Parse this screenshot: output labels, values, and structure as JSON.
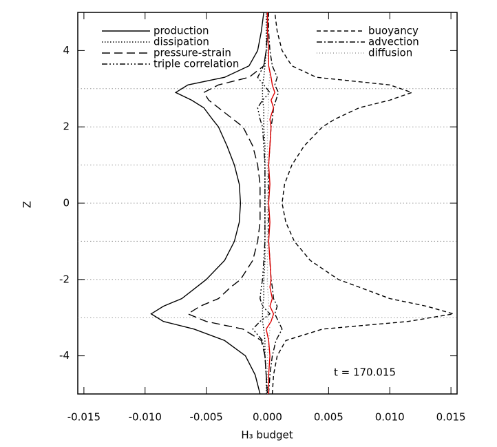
{
  "chart_data": {
    "type": "line",
    "xlabel": "H₃ budget",
    "ylabel": "Z",
    "annotation": "t = 170.015",
    "xlim": [
      -0.0155,
      0.0155
    ],
    "ylim": [
      -5,
      5
    ],
    "xticks": [
      {
        "value": -0.015,
        "label": "-0.015"
      },
      {
        "value": -0.01,
        "label": "-0.010"
      },
      {
        "value": -0.005,
        "label": "-0.005"
      },
      {
        "value": 0,
        "label": "0.000"
      },
      {
        "value": 0.005,
        "label": "0.005"
      },
      {
        "value": 0.01,
        "label": "0.010"
      },
      {
        "value": 0.015,
        "label": "0.015"
      }
    ],
    "yticks": [
      -4,
      -2,
      0,
      2,
      4
    ],
    "hlines": [
      -3,
      -2,
      -1,
      0,
      1,
      2,
      3
    ],
    "z": [
      -5,
      -4.5,
      -4,
      -3.6,
      -3.3,
      -3.1,
      -2.9,
      -2.7,
      -2.5,
      -2.2,
      -2,
      -1.5,
      -1,
      -0.5,
      0,
      0.5,
      1,
      1.5,
      2,
      2.2,
      2.5,
      2.7,
      2.9,
      3.1,
      3.3,
      3.6,
      4,
      4.5,
      5
    ],
    "series": [
      {
        "name": "production",
        "color": "#000000",
        "style": "solid",
        "values": [
          -0.0006,
          -0.001,
          -0.0018,
          -0.0035,
          -0.006,
          -0.0085,
          -0.0095,
          -0.0085,
          -0.007,
          -0.0058,
          -0.005,
          -0.0035,
          -0.0027,
          -0.0023,
          -0.0022,
          -0.0023,
          -0.0027,
          -0.0033,
          -0.004,
          -0.0045,
          -0.0052,
          -0.0062,
          -0.0075,
          -0.0065,
          -0.0035,
          -0.0015,
          -0.0008,
          -0.0005,
          -0.0003
        ]
      },
      {
        "name": "dissipation",
        "color": "#000000",
        "style": "dotted",
        "values": [
          -0.0001,
          -0.0001,
          -0.0002,
          -0.0002,
          -0.0003,
          -0.0004,
          -0.0004,
          -0.0004,
          -0.0003,
          -0.0003,
          -0.0003,
          -0.0002,
          -0.0002,
          -0.0002,
          -0.0002,
          -0.0002,
          -0.0002,
          -0.0002,
          -0.0003,
          -0.0003,
          -0.0003,
          -0.0004,
          -0.0004,
          -0.0004,
          -0.0003,
          -0.0002,
          -0.0001,
          -0.0001,
          -0.0001
        ]
      },
      {
        "name": "pressure-strain",
        "color": "#000000",
        "style": "longdash",
        "values": [
          0,
          -0.0001,
          -0.0002,
          -0.0005,
          -0.002,
          -0.005,
          -0.0065,
          -0.0055,
          -0.004,
          -0.003,
          -0.0022,
          -0.0012,
          -0.0008,
          -0.0006,
          -0.0006,
          -0.0006,
          -0.0008,
          -0.0012,
          -0.002,
          -0.0028,
          -0.004,
          -0.0048,
          -0.0052,
          -0.004,
          -0.0015,
          -0.0003,
          -0.0001,
          0,
          0
        ]
      },
      {
        "name": "triple correlation",
        "color": "#000000",
        "style": "dashdotdot",
        "values": [
          0,
          -0.0001,
          -0.0002,
          -0.0004,
          -0.0012,
          -0.0006,
          0.0002,
          -0.0004,
          -0.0006,
          -0.0005,
          -0.0004,
          -0.0003,
          -0.0002,
          -0.0002,
          -0.0002,
          -0.0002,
          -0.0002,
          -0.0003,
          -0.0004,
          -0.0006,
          -0.0008,
          -0.0004,
          0.0002,
          -0.0003,
          -0.0008,
          -0.0003,
          -0.0001,
          0,
          0
        ]
      },
      {
        "name": "buoyancy",
        "color": "#000000",
        "style": "dash",
        "values": [
          0.0004,
          0.0005,
          0.0008,
          0.0015,
          0.0045,
          0.0115,
          0.0152,
          0.013,
          0.01,
          0.0075,
          0.0058,
          0.0035,
          0.0022,
          0.0015,
          0.0012,
          0.0014,
          0.002,
          0.003,
          0.0045,
          0.0055,
          0.0075,
          0.01,
          0.0118,
          0.01,
          0.004,
          0.002,
          0.0012,
          0.0008,
          0.0006
        ]
      },
      {
        "name": "advection",
        "color": "#000000",
        "style": "dashdot",
        "values": [
          0.0001,
          0.0002,
          0.0004,
          0.0007,
          0.0012,
          0.0009,
          0.0006,
          0.0008,
          0.0005,
          0.0004,
          0.0003,
          0.0002,
          0.0001,
          0.0001,
          0.0001,
          0.0001,
          0.0001,
          0.0002,
          0.0003,
          0.0004,
          0.0005,
          0.0007,
          0.0009,
          0.0006,
          0.0008,
          0.0004,
          0.0002,
          0.0001,
          0.0001
        ]
      },
      {
        "name": "diffusion",
        "color": "#999999",
        "style": "fine",
        "values": [
          0,
          0,
          0,
          0.0001,
          0.0002,
          0.0001,
          0,
          0.0001,
          0.0001,
          0,
          0,
          0,
          0,
          0,
          0,
          0,
          0,
          0,
          0,
          0,
          0.0001,
          0.0001,
          0,
          0.0001,
          0.0002,
          0.0001,
          0,
          0,
          0
        ]
      },
      {
        "color": "#dd0000",
        "style": "solid",
        "values": [
          0.0001,
          0.0001,
          0.0002,
          0.0001,
          -0.0001,
          0.0003,
          0.0005,
          0.0002,
          0.0004,
          0.0002,
          0.0003,
          0.0002,
          0.0001,
          0.0002,
          0.0001,
          0.0002,
          0.0001,
          0.0002,
          0.0003,
          0.0002,
          0.0005,
          0.0003,
          0.0006,
          0.0004,
          0.0003,
          0.0001,
          0.0001,
          0,
          0
        ]
      }
    ]
  }
}
